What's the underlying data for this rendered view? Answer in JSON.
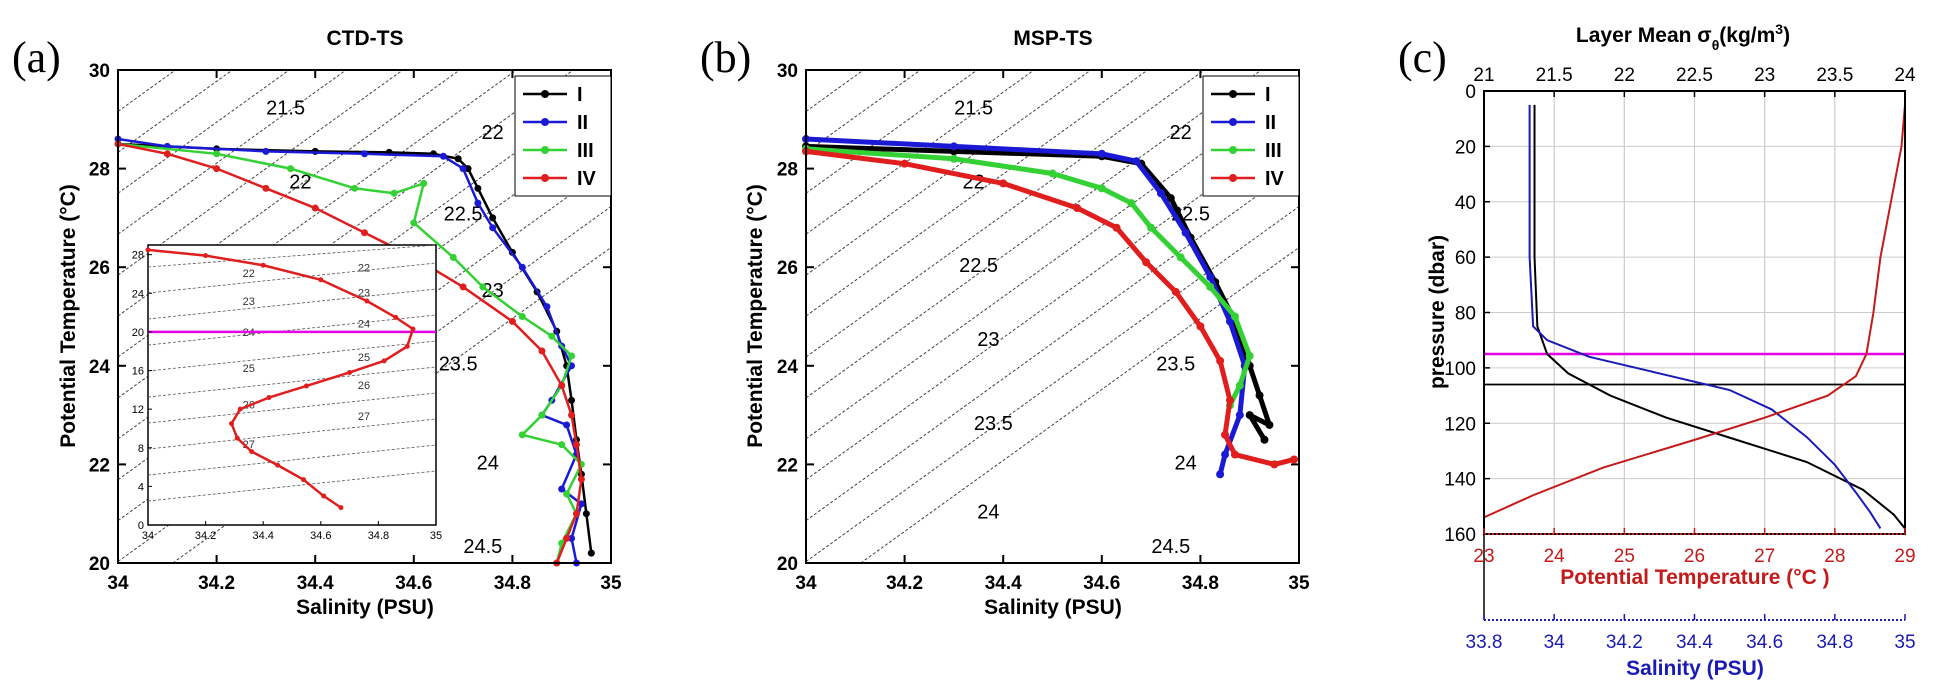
{
  "colors": {
    "I": "#000000",
    "II": "#1a1ad6",
    "III": "#33d133",
    "IV": "#e01e1e",
    "magenta": "#e600e6",
    "temp_red": "#c41a1a",
    "sal_blue": "#1a1ab4",
    "grid_red": "#e8b4b4",
    "grid_gray": "#cccccc"
  },
  "chart_data": [
    {
      "panel": "(a)",
      "type": "line",
      "title": "CTD-TS",
      "xlabel": "Salinity (PSU)",
      "ylabel": "Potential Temperature (°C)",
      "xlim": [
        34,
        35
      ],
      "ylim": [
        20,
        30
      ],
      "xticks": [
        "34",
        "34.2",
        "34.4",
        "34.6",
        "34.8",
        "35"
      ],
      "yticks": [
        "20",
        "22",
        "24",
        "26",
        "28",
        "30"
      ],
      "isopycnal_labels": [
        {
          "label": "21.5",
          "s": 34.34,
          "t": 29.1
        },
        {
          "label": "22",
          "s": 34.76,
          "t": 28.6
        },
        {
          "label": "22",
          "s": 34.37,
          "t": 27.6
        },
        {
          "label": "22.5",
          "s": 34.7,
          "t": 26.95
        },
        {
          "label": "23",
          "s": 34.76,
          "t": 25.4
        },
        {
          "label": "23.5",
          "s": 34.69,
          "t": 23.9
        },
        {
          "label": "24",
          "s": 34.75,
          "t": 21.9
        },
        {
          "label": "24.5",
          "s": 34.74,
          "t": 20.2
        }
      ],
      "series": [
        {
          "name": "I",
          "points": [
            [
              34.0,
              28.5
            ],
            [
              34.2,
              28.4
            ],
            [
              34.4,
              28.35
            ],
            [
              34.55,
              28.33
            ],
            [
              34.64,
              28.3
            ],
            [
              34.69,
              28.2
            ],
            [
              34.71,
              28.0
            ],
            [
              34.73,
              27.6
            ],
            [
              34.76,
              27.0
            ],
            [
              34.8,
              26.3
            ],
            [
              34.85,
              25.5
            ],
            [
              34.89,
              24.7
            ],
            [
              34.91,
              24.0
            ],
            [
              34.92,
              23.3
            ],
            [
              34.93,
              22.5
            ],
            [
              34.94,
              21.8
            ],
            [
              34.95,
              21.0
            ],
            [
              34.96,
              20.2
            ]
          ]
        },
        {
          "name": "II",
          "points": [
            [
              34.0,
              28.6
            ],
            [
              34.1,
              28.45
            ],
            [
              34.3,
              28.35
            ],
            [
              34.5,
              28.3
            ],
            [
              34.66,
              28.25
            ],
            [
              34.7,
              28.0
            ],
            [
              34.73,
              27.3
            ],
            [
              34.76,
              26.8
            ],
            [
              34.82,
              26.0
            ],
            [
              34.87,
              25.2
            ],
            [
              34.9,
              24.4
            ],
            [
              34.92,
              24.0
            ],
            [
              34.88,
              23.3
            ],
            [
              34.86,
              23.0
            ],
            [
              34.91,
              22.8
            ],
            [
              34.93,
              22.2
            ],
            [
              34.9,
              21.5
            ],
            [
              34.94,
              21.2
            ],
            [
              34.92,
              20.5
            ],
            [
              34.93,
              20.0
            ]
          ]
        },
        {
          "name": "III",
          "points": [
            [
              34.0,
              28.5
            ],
            [
              34.2,
              28.3
            ],
            [
              34.35,
              28.0
            ],
            [
              34.48,
              27.6
            ],
            [
              34.56,
              27.5
            ],
            [
              34.62,
              27.7
            ],
            [
              34.6,
              26.9
            ],
            [
              34.68,
              26.2
            ],
            [
              34.74,
              25.6
            ],
            [
              34.82,
              25.0
            ],
            [
              34.88,
              24.6
            ],
            [
              34.92,
              24.2
            ],
            [
              34.9,
              23.6
            ],
            [
              34.86,
              23.0
            ],
            [
              34.82,
              22.6
            ],
            [
              34.9,
              22.4
            ],
            [
              34.94,
              22.0
            ],
            [
              34.91,
              21.4
            ],
            [
              34.93,
              21.0
            ],
            [
              34.9,
              20.4
            ],
            [
              34.89,
              20.0
            ]
          ]
        },
        {
          "name": "IV",
          "points": [
            [
              34.0,
              28.5
            ],
            [
              34.1,
              28.3
            ],
            [
              34.2,
              28.0
            ],
            [
              34.3,
              27.6
            ],
            [
              34.4,
              27.2
            ],
            [
              34.5,
              26.7
            ],
            [
              34.6,
              26.2
            ],
            [
              34.7,
              25.6
            ],
            [
              34.8,
              24.9
            ],
            [
              34.86,
              24.3
            ],
            [
              34.9,
              23.6
            ],
            [
              34.92,
              23.0
            ],
            [
              34.93,
              22.4
            ],
            [
              34.94,
              21.7
            ],
            [
              34.93,
              21.0
            ],
            [
              34.91,
              20.5
            ],
            [
              34.89,
              20.0
            ]
          ]
        }
      ],
      "inset": {
        "xlim": [
          34,
          35
        ],
        "ylim": [
          0,
          29
        ],
        "xticks": [
          "34",
          "34.2",
          "34.4",
          "34.6",
          "34.8",
          "35"
        ],
        "yticks": [
          "0",
          "4",
          "8",
          "12",
          "16",
          "20",
          "24",
          "28"
        ],
        "isopycnal_labels": [
          "22",
          "22",
          "23",
          "23",
          "24",
          "24",
          "25",
          "25",
          "26",
          "26",
          "27",
          "27"
        ],
        "magenta_line": 20,
        "series": {
          "name": "IV",
          "points": [
            [
              34.0,
              28.5
            ],
            [
              34.2,
              27.9
            ],
            [
              34.4,
              26.9
            ],
            [
              34.6,
              25.4
            ],
            [
              34.76,
              23.2
            ],
            [
              34.86,
              21.5
            ],
            [
              34.92,
              20.3
            ],
            [
              34.9,
              18.5
            ],
            [
              34.82,
              17.0
            ],
            [
              34.7,
              15.8
            ],
            [
              34.55,
              14.4
            ],
            [
              34.42,
              13.2
            ],
            [
              34.32,
              12.0
            ],
            [
              34.29,
              10.5
            ],
            [
              34.31,
              9.0
            ],
            [
              34.36,
              7.6
            ],
            [
              34.45,
              6.2
            ],
            [
              34.54,
              4.7
            ],
            [
              34.61,
              3.0
            ],
            [
              34.67,
              1.8
            ]
          ]
        }
      }
    },
    {
      "panel": "(b)",
      "type": "line",
      "title": "MSP-TS",
      "xlabel": "Salinity (PSU)",
      "ylabel": "Potential Temperature (°C)",
      "xlim": [
        34,
        35
      ],
      "ylim": [
        20,
        30
      ],
      "xticks": [
        "34",
        "34.2",
        "34.4",
        "34.6",
        "34.8",
        "35"
      ],
      "yticks": [
        "20",
        "22",
        "24",
        "26",
        "28",
        "30"
      ],
      "isopycnal_labels": [
        {
          "label": "21.5",
          "s": 34.34,
          "t": 29.1
        },
        {
          "label": "22",
          "s": 34.76,
          "t": 28.6
        },
        {
          "label": "22",
          "s": 34.34,
          "t": 27.6
        },
        {
          "label": "22.5",
          "s": 34.78,
          "t": 26.95
        },
        {
          "label": "22.5",
          "s": 34.35,
          "t": 25.9
        },
        {
          "label": "23",
          "s": 34.37,
          "t": 24.4
        },
        {
          "label": "23.5",
          "s": 34.75,
          "t": 23.9
        },
        {
          "label": "23.5",
          "s": 34.38,
          "t": 22.7
        },
        {
          "label": "24",
          "s": 34.77,
          "t": 21.9
        },
        {
          "label": "24",
          "s": 34.37,
          "t": 20.9
        },
        {
          "label": "24.5",
          "s": 34.74,
          "t": 20.2
        }
      ],
      "series": [
        {
          "name": "I",
          "points": [
            [
              34.0,
              28.45
            ],
            [
              34.3,
              28.35
            ],
            [
              34.6,
              28.25
            ],
            [
              34.68,
              28.1
            ],
            [
              34.74,
              27.4
            ],
            [
              34.78,
              26.6
            ],
            [
              34.83,
              25.7
            ],
            [
              34.87,
              24.9
            ],
            [
              34.9,
              24.0
            ],
            [
              34.92,
              23.4
            ],
            [
              34.94,
              22.8
            ],
            [
              34.9,
              23.0
            ],
            [
              34.93,
              22.5
            ]
          ]
        },
        {
          "name": "II",
          "points": [
            [
              34.0,
              28.6
            ],
            [
              34.3,
              28.45
            ],
            [
              34.6,
              28.3
            ],
            [
              34.67,
              28.15
            ],
            [
              34.72,
              27.5
            ],
            [
              34.77,
              26.7
            ],
            [
              34.82,
              25.8
            ],
            [
              34.86,
              24.9
            ],
            [
              34.89,
              24.0
            ],
            [
              34.88,
              23.0
            ],
            [
              34.85,
              22.2
            ],
            [
              34.84,
              21.8
            ]
          ]
        },
        {
          "name": "III",
          "points": [
            [
              34.0,
              28.4
            ],
            [
              34.3,
              28.2
            ],
            [
              34.5,
              27.9
            ],
            [
              34.6,
              27.6
            ],
            [
              34.66,
              27.3
            ],
            [
              34.7,
              26.8
            ],
            [
              34.76,
              26.2
            ],
            [
              34.82,
              25.6
            ],
            [
              34.87,
              25.0
            ],
            [
              34.9,
              24.2
            ],
            [
              34.88,
              23.6
            ],
            [
              34.86,
              23.2
            ]
          ]
        },
        {
          "name": "IV",
          "points": [
            [
              34.0,
              28.35
            ],
            [
              34.2,
              28.1
            ],
            [
              34.4,
              27.7
            ],
            [
              34.55,
              27.2
            ],
            [
              34.63,
              26.8
            ],
            [
              34.69,
              26.1
            ],
            [
              34.75,
              25.5
            ],
            [
              34.8,
              24.8
            ],
            [
              34.84,
              24.1
            ],
            [
              34.86,
              23.3
            ],
            [
              34.85,
              22.6
            ],
            [
              34.87,
              22.2
            ],
            [
              34.95,
              22.0
            ],
            [
              34.99,
              22.1
            ]
          ]
        }
      ],
      "legend": [
        "I",
        "II",
        "III",
        "IV"
      ]
    },
    {
      "panel": "(c)",
      "type": "line",
      "title": "Layer Mean σθ(kg/m3)",
      "top_axis": {
        "label": "Layer Mean σθ(kg/m3)",
        "lim": [
          21,
          24
        ],
        "ticks": [
          "21",
          "21.5",
          "22",
          "22.5",
          "23",
          "23.5",
          "24"
        ]
      },
      "left_axis": {
        "label": "pressure (dbar)",
        "lim": [
          0,
          160
        ],
        "ticks": [
          "0",
          "20",
          "40",
          "60",
          "80",
          "100",
          "120",
          "140",
          "160"
        ]
      },
      "bottom_axis_temp": {
        "label": "Potential Temperature (°C )",
        "lim": [
          23,
          29
        ],
        "ticks": [
          "23",
          "24",
          "25",
          "26",
          "27",
          "28",
          "29"
        ]
      },
      "bottom_axis_sal": {
        "label": "Salinity (PSU)",
        "lim": [
          33.8,
          35
        ],
        "ticks": [
          "33.8",
          "34",
          "34.2",
          "34.4",
          "34.6",
          "34.8",
          "35"
        ]
      },
      "hlines": {
        "magenta": 95,
        "black": 106
      },
      "series": [
        {
          "name": "sigma",
          "axis": "top",
          "points": [
            [
              21.36,
              5
            ],
            [
              21.36,
              60
            ],
            [
              21.38,
              85
            ],
            [
              21.45,
              95
            ],
            [
              21.6,
              102
            ],
            [
              21.9,
              110
            ],
            [
              22.3,
              118
            ],
            [
              22.8,
              126
            ],
            [
              23.3,
              134
            ],
            [
              23.7,
              144
            ],
            [
              23.92,
              153
            ],
            [
              24.0,
              158
            ]
          ]
        },
        {
          "name": "salinity",
          "axis": "sal",
          "points": [
            [
              33.93,
              5
            ],
            [
              33.93,
              60
            ],
            [
              33.94,
              85
            ],
            [
              33.98,
              90
            ],
            [
              34.1,
              96
            ],
            [
              34.3,
              102
            ],
            [
              34.5,
              108
            ],
            [
              34.62,
              115
            ],
            [
              34.72,
              125
            ],
            [
              34.8,
              135
            ],
            [
              34.86,
              145
            ],
            [
              34.9,
              152
            ],
            [
              34.93,
              158
            ]
          ]
        },
        {
          "name": "temperature",
          "axis": "temp",
          "points": [
            [
              29.0,
              5
            ],
            [
              28.95,
              20
            ],
            [
              28.8,
              40
            ],
            [
              28.65,
              60
            ],
            [
              28.55,
              80
            ],
            [
              28.45,
              95
            ],
            [
              28.3,
              103
            ],
            [
              27.9,
              110
            ],
            [
              27.0,
              118
            ],
            [
              26.0,
              126
            ],
            [
              24.7,
              136
            ],
            [
              23.7,
              146
            ],
            [
              23.0,
              154
            ]
          ]
        }
      ]
    }
  ],
  "panel_labels": [
    "(a)",
    "(b)",
    "(c)"
  ],
  "inset_labels": {
    "isopycnals": [
      "22",
      "22",
      "23",
      "23",
      "24",
      "24",
      "25",
      "25",
      "26",
      "26",
      "27",
      "27"
    ]
  }
}
